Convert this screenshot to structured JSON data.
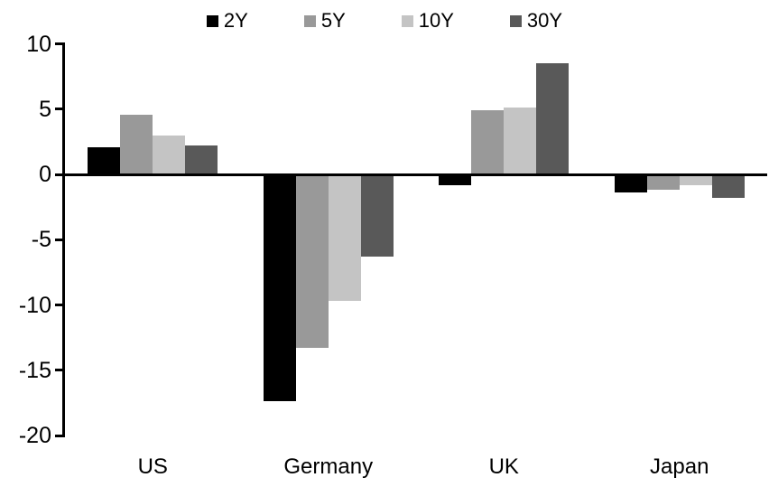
{
  "chart_data": {
    "type": "bar",
    "title": "",
    "categories": [
      "US",
      "Germany",
      "UK",
      "Japan"
    ],
    "series": [
      {
        "name": "2Y",
        "color": "#000000",
        "values": [
          2.1,
          -17.4,
          -0.8,
          -1.4
        ]
      },
      {
        "name": "5Y",
        "color": "#999999",
        "values": [
          4.6,
          -13.3,
          4.9,
          -1.2
        ]
      },
      {
        "name": "10Y",
        "color": "#c4c4c4",
        "values": [
          3.0,
          -9.7,
          5.1,
          -0.8
        ]
      },
      {
        "name": "30Y",
        "color": "#595959",
        "values": [
          2.2,
          -6.3,
          8.5,
          -1.8
        ]
      }
    ],
    "xlabel": "",
    "ylabel": "",
    "ylim": [
      -20,
      10
    ],
    "yticks": [
      10,
      5,
      0,
      -5,
      -10,
      -15,
      -20
    ],
    "legend_position": "top",
    "grid": false,
    "axis_color": "#000000",
    "background": "#ffffff"
  }
}
